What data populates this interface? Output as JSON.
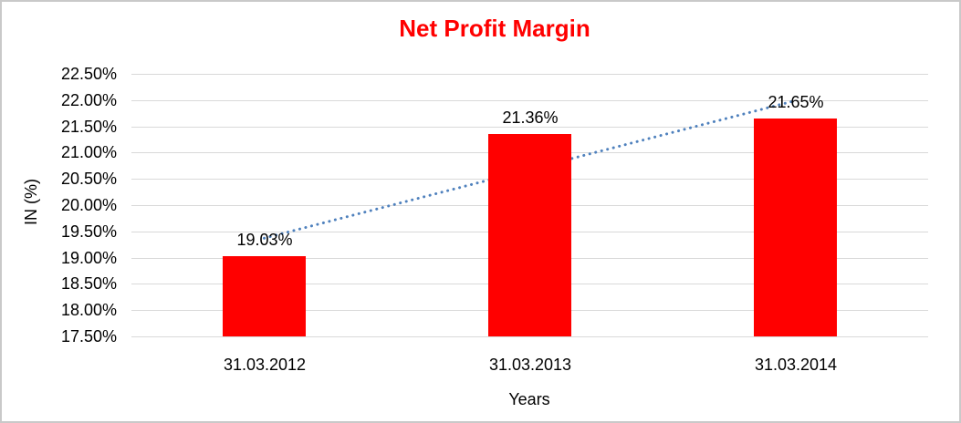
{
  "window": {
    "background_color": "#ffffff",
    "frame_border_color": "#c9c9c9"
  },
  "chart_data": {
    "type": "bar",
    "title": "Net Profit Margin",
    "title_color": "#ff0000",
    "categories": [
      "31.03.2012",
      "31.03.2013",
      "31.03.2014"
    ],
    "values": [
      19.03,
      21.36,
      21.65
    ],
    "data_labels": [
      "19.03%",
      "21.36%",
      "21.65%"
    ],
    "xlabel": "Years",
    "ylabel": "IN (%)",
    "ylim": [
      17.5,
      22.5
    ],
    "ytick_step": 0.5,
    "ytick_labels": [
      "22.50%",
      "22.00%",
      "21.50%",
      "21.00%",
      "20.50%",
      "20.00%",
      "19.50%",
      "19.00%",
      "18.50%",
      "18.00%",
      "17.50%"
    ],
    "bar_color": "#ff0000",
    "gridline_color": "#d9d9d9",
    "grid": "horizontal-only",
    "legend": "none",
    "trendline": {
      "type": "linear",
      "style": "dotted",
      "color": "#4f81bd",
      "start_value": 19.37,
      "end_value": 21.99
    }
  }
}
